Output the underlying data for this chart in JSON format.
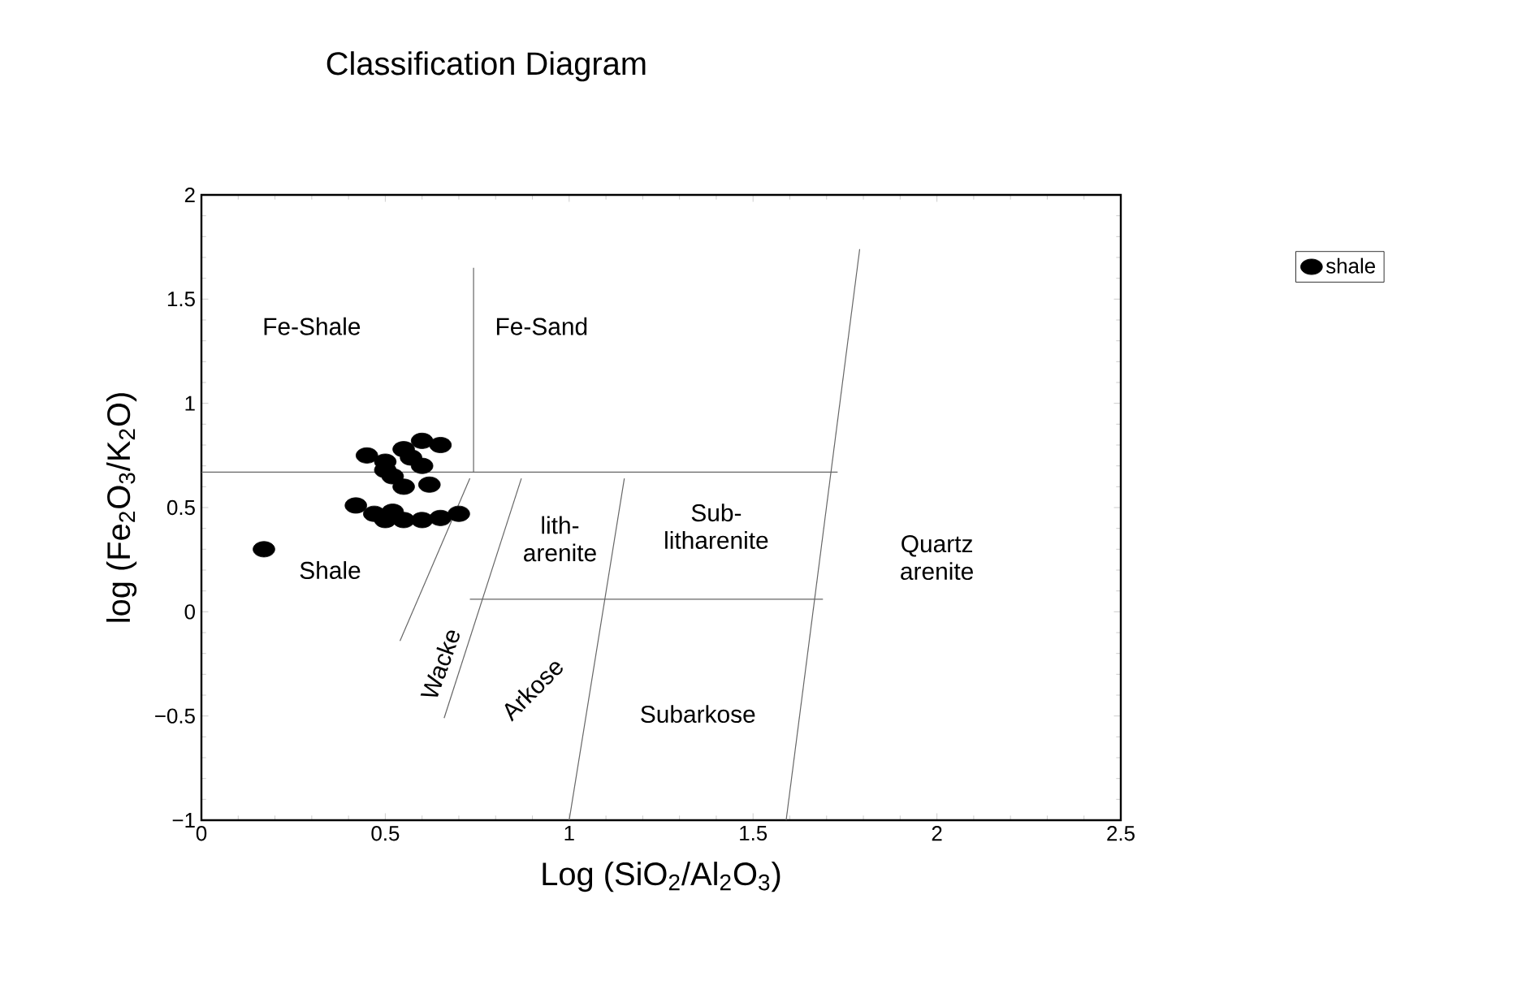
{
  "chart_data": {
    "type": "scatter",
    "title": "Classification Diagram",
    "xlabel": "Log (SiO$_{2}$/Al$_{2}$O$_{3}$)",
    "ylabel": "log (Fe$_{2}$O$_{3}$/K$_{2}$O)",
    "xlim": [
      0,
      2.5
    ],
    "ylim": [
      -1,
      2
    ],
    "xticks": [
      {
        "value": 0,
        "label": "0"
      },
      0.5,
      1,
      1.5,
      2,
      2.5
    ],
    "yticks": [
      {
        "value": -1,
        "label": "−1"
      },
      {
        "value": -0.5,
        "label": "−0.5"
      },
      0,
      0.5,
      1,
      1.5,
      2
    ],
    "grid": false,
    "legend": "top right",
    "series": [
      {
        "name": "shale",
        "marker": "circle",
        "color": "#000000",
        "x": [
          0.17,
          0.45,
          0.5,
          0.55,
          0.6,
          0.65,
          0.52,
          0.62,
          0.55,
          0.6,
          0.5,
          0.57,
          0.42,
          0.47,
          0.5,
          0.55,
          0.6,
          0.65,
          0.7,
          0.52
        ],
        "values": [
          0.3,
          0.75,
          0.72,
          0.78,
          0.82,
          0.8,
          0.65,
          0.61,
          0.6,
          0.7,
          0.68,
          0.74,
          0.51,
          0.47,
          0.44,
          0.44,
          0.44,
          0.45,
          0.47,
          0.48
        ]
      },
      {
        "type": "line",
        "marker": "none",
        "color": "#666666",
        "x": [
          0.74,
          0.74
        ],
        "values": [
          0.67,
          1.65
        ]
      },
      {
        "type": "line",
        "marker": "none",
        "color": "#666666",
        "x": [
          0,
          1.73
        ],
        "values": [
          0.67,
          0.67
        ]
      },
      {
        "type": "line",
        "marker": "none",
        "color": "#666666",
        "x": [
          0.73,
          0.54
        ],
        "values": [
          0.64,
          -0.14
        ]
      },
      {
        "type": "line",
        "marker": "none",
        "color": "#666666",
        "x": [
          0.87,
          0.66
        ],
        "values": [
          0.64,
          -0.51
        ]
      },
      {
        "type": "line",
        "marker": "none",
        "color": "#666666",
        "x": [
          1.15,
          1.0
        ],
        "values": [
          0.64,
          -1
        ]
      },
      {
        "type": "line",
        "marker": "none",
        "color": "#666666",
        "x": [
          1.79,
          1.59
        ],
        "values": [
          1.74,
          -1
        ]
      },
      {
        "type": "line",
        "marker": "none",
        "color": "#666666",
        "x": [
          0.73,
          1.69
        ],
        "values": [
          0.06,
          0.06
        ]
      }
    ],
    "annotations": [
      "Fe-Shale",
      "Fe-Sand",
      "Shale",
      "lith- arenite",
      "Sub- litharenite",
      "Quartz arenite",
      "Wacke",
      "Arkose",
      "Subarkose"
    ]
  }
}
